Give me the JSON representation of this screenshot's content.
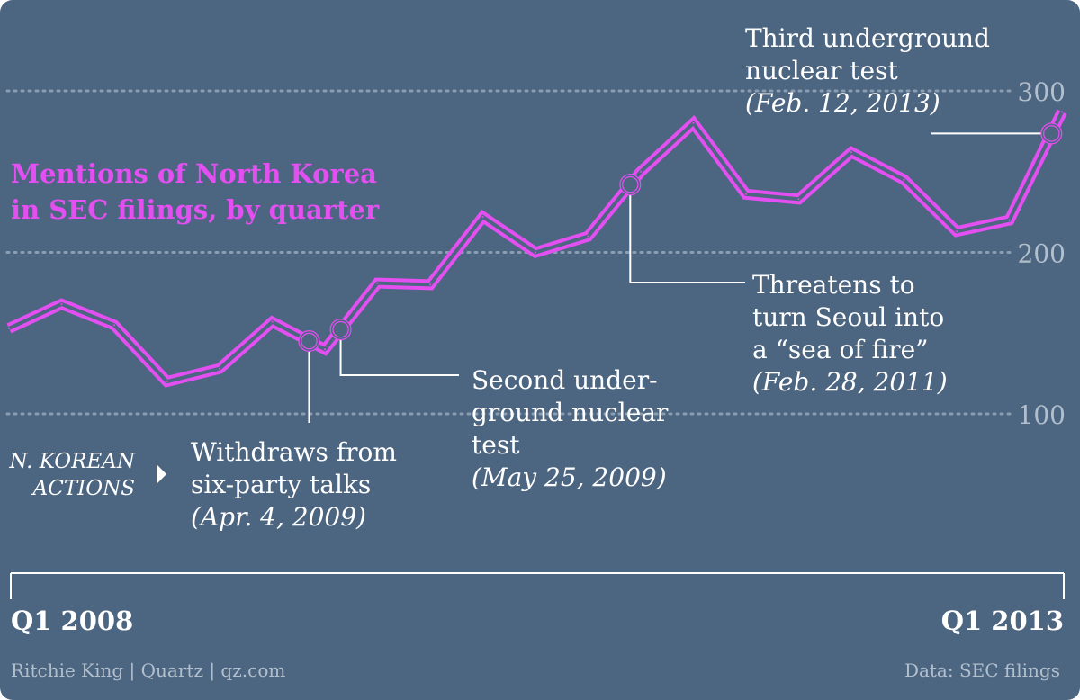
{
  "colors": {
    "background": "#4c6580",
    "line": "#e34ff0",
    "grid": "#8a9db1",
    "text": "#ffffff",
    "muted": "#b2bfcd",
    "title": "#e34ff0"
  },
  "title_lines": [
    "Mentions of North Korea",
    "in SEC filings, by quarter"
  ],
  "actions_label_lines": [
    "N. KOREAN",
    "ACTIONS"
  ],
  "footer": {
    "credit": "Ritchie King | Quartz | qz.com",
    "source": "Data: SEC filings"
  },
  "annotations": [
    {
      "id": "six-party",
      "index": 5.7,
      "lines": [
        "Withdraws from",
        "six-party talks"
      ],
      "date": "(Apr. 4, 2009)"
    },
    {
      "id": "second-test",
      "index": 6.3,
      "lines": [
        "Second under-",
        "ground nuclear",
        "test"
      ],
      "date": "(May 25, 2009)"
    },
    {
      "id": "sea-of-fire",
      "index": 11.8,
      "lines": [
        "Threatens to",
        "turn Seoul into",
        "a “sea of fire”"
      ],
      "date": "(Feb. 28, 2011)"
    },
    {
      "id": "third-test",
      "index": 19.8,
      "lines": [
        "Third underground",
        "nuclear test"
      ],
      "date": "(Feb. 12, 2013)"
    }
  ],
  "chart_data": {
    "type": "line",
    "title": "Mentions of North Korea in SEC filings, by quarter",
    "x_start_label": "Q1 2008",
    "x_end_label": "Q1 2013",
    "ylim": [
      60,
      330
    ],
    "yticks": [
      100,
      200,
      300
    ],
    "grid": true,
    "series": [
      {
        "values": [
          153,
          168,
          155,
          120,
          128,
          157,
          140,
          181,
          180,
          222,
          200,
          210,
          250,
          280,
          236,
          233,
          262,
          245,
          213,
          220,
          287
        ]
      }
    ]
  }
}
